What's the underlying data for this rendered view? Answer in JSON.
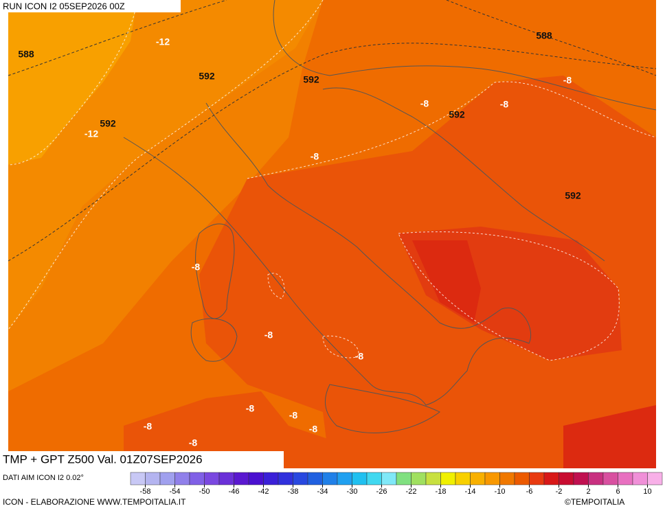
{
  "header": {
    "run": "RUN ICON I2 05SEP2026 00Z"
  },
  "footer": {
    "title": "TMP + GPT Z500 Val. 01Z07SEP2026",
    "source": "DATI AIM ICON I2 0.02°",
    "credit": "ICON - ELABORAZIONE WWW.TEMPOITALIA.IT",
    "copyright": "©TEMPOITALIA"
  },
  "map_labels": [
    "588",
    "-12",
    "592",
    "592",
    "588",
    "-8",
    "-8",
    "592",
    "-8",
    "592",
    "-12",
    "-8",
    "592",
    "-8",
    "-8",
    "-8",
    "-8",
    "-8",
    "-8",
    "-8",
    "-8"
  ],
  "colorbar": {
    "colors": [
      "#c8c8f5",
      "#b4b4f0",
      "#a0a0ee",
      "#9080ea",
      "#8060e6",
      "#7a48e0",
      "#6a30d8",
      "#5a18d0",
      "#4a10d0",
      "#3a20d8",
      "#3030dc",
      "#2848e0",
      "#2060e0",
      "#2080e8",
      "#20a0f0",
      "#20c0f0",
      "#40d8f0",
      "#80e8f8",
      "#80e080",
      "#a0e060",
      "#c8e040",
      "#f0f000",
      "#f8d000",
      "#f8b000",
      "#f89800",
      "#f07800",
      "#ec5a00",
      "#e83a10",
      "#d81818",
      "#c80c30",
      "#c01050",
      "#c83080",
      "#d850a0",
      "#e870c0",
      "#f090d8",
      "#f8b0e8"
    ],
    "labels": [
      -58,
      -54,
      -50,
      -46,
      -42,
      -38,
      -34,
      -30,
      -26,
      -22,
      -18,
      -14,
      -10,
      -6,
      -2,
      2,
      6,
      10
    ]
  }
}
